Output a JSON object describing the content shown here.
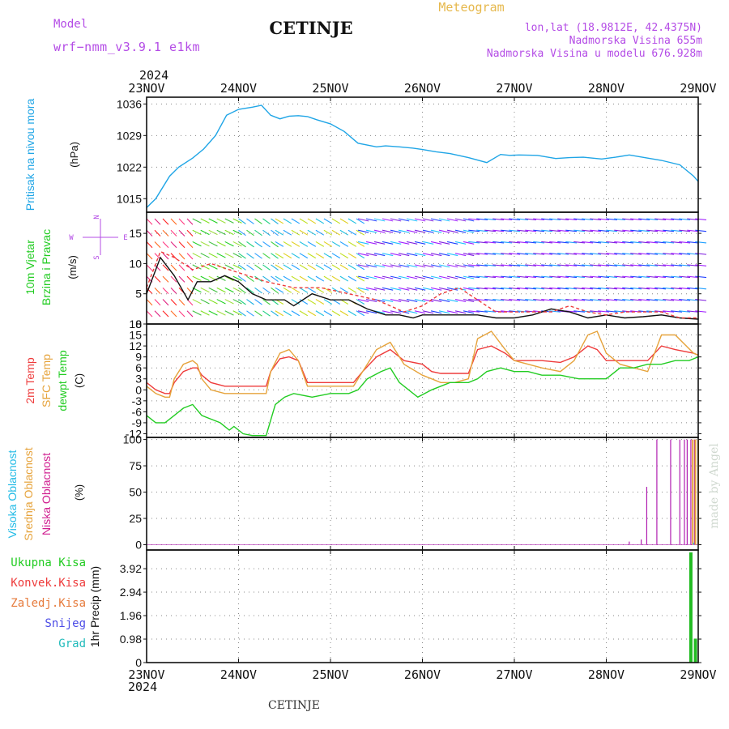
{
  "header": {
    "model_label": "Model",
    "model_name": "wrf−nmm_v3.9.1  e1km",
    "station": "CETINJE",
    "product": "Meteogram",
    "lonlat": "lon,lat (18.9812E, 42.4375N)",
    "altitude": "Nadmorska Visina 655m",
    "model_altitude": "Nadmorska Visina u modelu 676.928m",
    "footer_station": "CETINJE",
    "watermark": "made by Angel"
  },
  "colors": {
    "pressure": "#1fa5e6",
    "temp2m": "#ee3b3b",
    "sfc": "#e6a33b",
    "dew": "#22cc22",
    "high_cloud": "#22bbe6",
    "mid_cloud": "#e6a33b",
    "low_cloud": "#b01fb0",
    "purple_text": "#b44ce6",
    "orange_text": "#e6b84c"
  },
  "chart_data": [
    {
      "type": "line",
      "panel": "pressure",
      "ylabel": "Pritisak na nivou mora",
      "unit": "(hPa)",
      "x_axis": {
        "year_top": "2024",
        "year_bottom": "2024",
        "tick_labels": [
          "23NOV",
          "24NOV",
          "25NOV",
          "26NOV",
          "27NOV",
          "28NOV",
          "29NOV"
        ],
        "range_days": [
          0,
          6
        ]
      },
      "ylim": [
        1012,
        1037.5
      ],
      "yticks": [
        1015,
        1022,
        1029,
        1036
      ],
      "grid": true,
      "series": [
        {
          "name": "Pritisak na nivou mora",
          "x": [
            0,
            0.1,
            0.25,
            0.35,
            0.5,
            0.62,
            0.75,
            0.87,
            1.0,
            1.15,
            1.25,
            1.35,
            1.45,
            1.55,
            1.65,
            1.75,
            1.85,
            2.0,
            2.15,
            2.3,
            2.5,
            2.6,
            2.75,
            2.9,
            3.0,
            3.15,
            3.3,
            3.5,
            3.7,
            3.85,
            3.95,
            4.05,
            4.25,
            4.45,
            4.6,
            4.75,
            4.95,
            5.1,
            5.25,
            5.45,
            5.6,
            5.8,
            5.95,
            6.0
          ],
          "values": [
            1013,
            1015,
            1020,
            1022,
            1024,
            1026,
            1029,
            1033.5,
            1034.8,
            1035.3,
            1035.7,
            1033.5,
            1032.7,
            1033.3,
            1033.4,
            1033.2,
            1032.5,
            1031.6,
            1029.9,
            1027.3,
            1026.5,
            1026.7,
            1026.5,
            1026.2,
            1025.9,
            1025.4,
            1025,
            1024.1,
            1023,
            1024.8,
            1024.6,
            1024.7,
            1024.6,
            1023.9,
            1024.1,
            1024.2,
            1023.8,
            1024.2,
            1024.7,
            1024,
            1023.5,
            1022.5,
            1020,
            1018.8
          ]
        }
      ]
    },
    {
      "type": "vector",
      "panel": "wind",
      "ylabel": "10m Vjetar Brzina i Pravac",
      "unit": "(m/s)",
      "ylim": [
        0,
        18.5
      ],
      "yticks": [
        0,
        5,
        10,
        15
      ],
      "grid": true,
      "rose": {
        "n": "N",
        "s": "S",
        "e": "E",
        "w": "W"
      },
      "series": [
        {
          "name": "black",
          "x": [
            0,
            0.15,
            0.3,
            0.45,
            0.55,
            0.7,
            0.85,
            1.0,
            1.15,
            1.3,
            1.5,
            1.6,
            1.8,
            2.0,
            2.2,
            2.4,
            2.6,
            2.75,
            2.9,
            3.0,
            3.2,
            3.4,
            3.6,
            3.8,
            4.0,
            4.2,
            4.4,
            4.6,
            4.8,
            5.0,
            5.2,
            5.4,
            5.6,
            5.8,
            6.0
          ],
          "values": [
            5,
            11,
            8,
            4,
            7,
            7,
            8,
            7,
            5,
            4,
            4,
            3,
            5,
            4,
            4,
            2.5,
            1.5,
            1.5,
            1,
            1.5,
            1.5,
            1.5,
            1.5,
            1,
            1,
            1.5,
            2.5,
            2,
            1,
            1.5,
            1,
            1.2,
            1.5,
            1,
            0.8
          ]
        },
        {
          "name": "red dashed",
          "x": [
            0,
            0.15,
            0.3,
            0.5,
            0.7,
            0.9,
            1.1,
            1.3,
            1.6,
            1.9,
            2.2,
            2.5,
            2.8,
            3.0,
            3.2,
            3.4,
            3.6,
            3.8,
            4.0,
            4.2,
            4.4,
            4.6,
            4.8,
            5.0,
            5.2,
            5.4,
            5.6,
            5.8,
            6.0
          ],
          "values": [
            6,
            12,
            11,
            9,
            10,
            9,
            8,
            7,
            6,
            6,
            5,
            4,
            2,
            3,
            5,
            6,
            4,
            2,
            2,
            2,
            2,
            3,
            2,
            1.5,
            2,
            2,
            2,
            1,
            1
          ]
        }
      ]
    },
    {
      "type": "line",
      "panel": "temperature",
      "ylabel": [
        "2m Temp",
        "SFC Temp",
        "dewpt Temp"
      ],
      "unit": "(C)",
      "ylim": [
        -13,
        18
      ],
      "yticks": [
        -12,
        -9,
        -6,
        -3,
        0,
        3,
        6,
        9,
        12,
        15,
        18
      ],
      "grid": true,
      "series": [
        {
          "name": "2m Temp",
          "x": [
            0,
            0.1,
            0.2,
            0.25,
            0.3,
            0.4,
            0.5,
            0.55,
            0.6,
            0.7,
            0.85,
            1.0,
            1.1,
            1.2,
            1.3,
            1.35,
            1.45,
            1.55,
            1.65,
            1.75,
            2.0,
            2.25,
            2.35,
            2.5,
            2.65,
            2.8,
            3.0,
            3.1,
            3.2,
            3.35,
            3.5,
            3.6,
            3.75,
            3.9,
            4.0,
            4.15,
            4.3,
            4.5,
            4.65,
            4.8,
            4.9,
            5.0,
            5.15,
            5.3,
            5.45,
            5.6,
            5.75,
            5.95,
            6.0
          ],
          "values": [
            2,
            0,
            -1,
            -1,
            2,
            5,
            6,
            6,
            4,
            2,
            1,
            1,
            1,
            1,
            1,
            5,
            8.5,
            9,
            8,
            2,
            2,
            2,
            5,
            9,
            11,
            8,
            7,
            5,
            4.5,
            4.5,
            4.5,
            11,
            12,
            10,
            8,
            8,
            8,
            7.5,
            9,
            12,
            11,
            8,
            8,
            8,
            8,
            12,
            11,
            10,
            9.5
          ]
        },
        {
          "name": "SFC Temp",
          "x": [
            0,
            0.1,
            0.2,
            0.25,
            0.3,
            0.4,
            0.5,
            0.55,
            0.6,
            0.7,
            0.85,
            1.0,
            1.1,
            1.2,
            1.3,
            1.35,
            1.45,
            1.55,
            1.65,
            1.75,
            2.0,
            2.25,
            2.35,
            2.5,
            2.65,
            2.8,
            3.0,
            3.1,
            3.2,
            3.35,
            3.5,
            3.6,
            3.75,
            3.9,
            4.0,
            4.15,
            4.3,
            4.5,
            4.65,
            4.8,
            4.9,
            5.0,
            5.15,
            5.3,
            5.45,
            5.6,
            5.75,
            5.95,
            6.0
          ],
          "values": [
            1,
            -1,
            -2,
            -2,
            3,
            7,
            8,
            7,
            3,
            0,
            -1,
            -1,
            -1,
            -1,
            -1,
            5,
            10,
            11,
            8,
            1,
            1,
            1,
            5,
            11,
            13,
            7,
            4,
            3,
            2,
            2,
            3,
            14,
            16,
            11,
            8,
            7,
            6,
            5,
            8,
            15,
            16,
            10,
            7,
            6,
            5,
            15,
            15,
            10,
            9.5
          ]
        },
        {
          "name": "dewpt Temp",
          "x": [
            0,
            0.1,
            0.2,
            0.3,
            0.4,
            0.5,
            0.6,
            0.7,
            0.8,
            0.9,
            0.95,
            1.05,
            1.15,
            1.3,
            1.4,
            1.5,
            1.6,
            1.8,
            2.0,
            2.2,
            2.3,
            2.4,
            2.55,
            2.65,
            2.75,
            2.85,
            2.95,
            3.1,
            3.3,
            3.5,
            3.6,
            3.7,
            3.85,
            4.0,
            4.15,
            4.3,
            4.5,
            4.7,
            4.8,
            5.0,
            5.15,
            5.3,
            5.45,
            5.6,
            5.75,
            5.9,
            6.0
          ],
          "values": [
            -7,
            -9,
            -9,
            -7,
            -5,
            -4,
            -7,
            -8,
            -9,
            -11,
            -10,
            -12,
            -12.5,
            -12.5,
            -4,
            -2,
            -1,
            -2,
            -1,
            -1,
            0,
            3,
            5,
            6,
            2,
            0,
            -2,
            0,
            2,
            2,
            3,
            5,
            6,
            5,
            5,
            4,
            4,
            3,
            3,
            3,
            6,
            6,
            7,
            7,
            8,
            8,
            9
          ]
        }
      ]
    },
    {
      "type": "bar",
      "panel": "clouds",
      "ylabel": [
        "Visoka Oblacnost",
        "Srednja Oblacnost",
        "Niska Oblacnost"
      ],
      "unit": "(%)",
      "ylim": [
        -5,
        102
      ],
      "yticks": [
        0,
        25,
        50,
        75,
        100
      ],
      "grid": true,
      "series": [
        {
          "name": "Niska Oblacnost",
          "x": [
            5.25,
            5.38,
            5.44,
            5.55,
            5.7,
            5.8,
            5.85,
            5.88,
            5.92,
            5.96
          ],
          "values": [
            3,
            5,
            55,
            100,
            100,
            100,
            100,
            100,
            100,
            100
          ]
        },
        {
          "name": "Srednja Oblacnost",
          "x": [
            5.94,
            5.97,
            6.0
          ],
          "values": [
            100,
            100,
            100
          ]
        },
        {
          "name": "Visoka Oblacnost",
          "x": [
            5.95
          ],
          "values": [
            2
          ]
        }
      ]
    },
    {
      "type": "bar",
      "panel": "precip",
      "ylabel": "1hr Precip",
      "unit": "(mm)",
      "ylim": [
        0,
        4.7
      ],
      "yticks": [
        0,
        0.98,
        1.96,
        2.94,
        3.92
      ],
      "grid": true,
      "legend": [
        "Ukupna Kisa",
        "Konvek.Kisa",
        "Zaledj.Kisa",
        "Snijeg",
        "Grad"
      ],
      "series": [
        {
          "name": "Ukupna Kisa",
          "x": [
            5.92,
            5.97
          ],
          "values": [
            4.6,
            1.0
          ]
        }
      ]
    }
  ]
}
